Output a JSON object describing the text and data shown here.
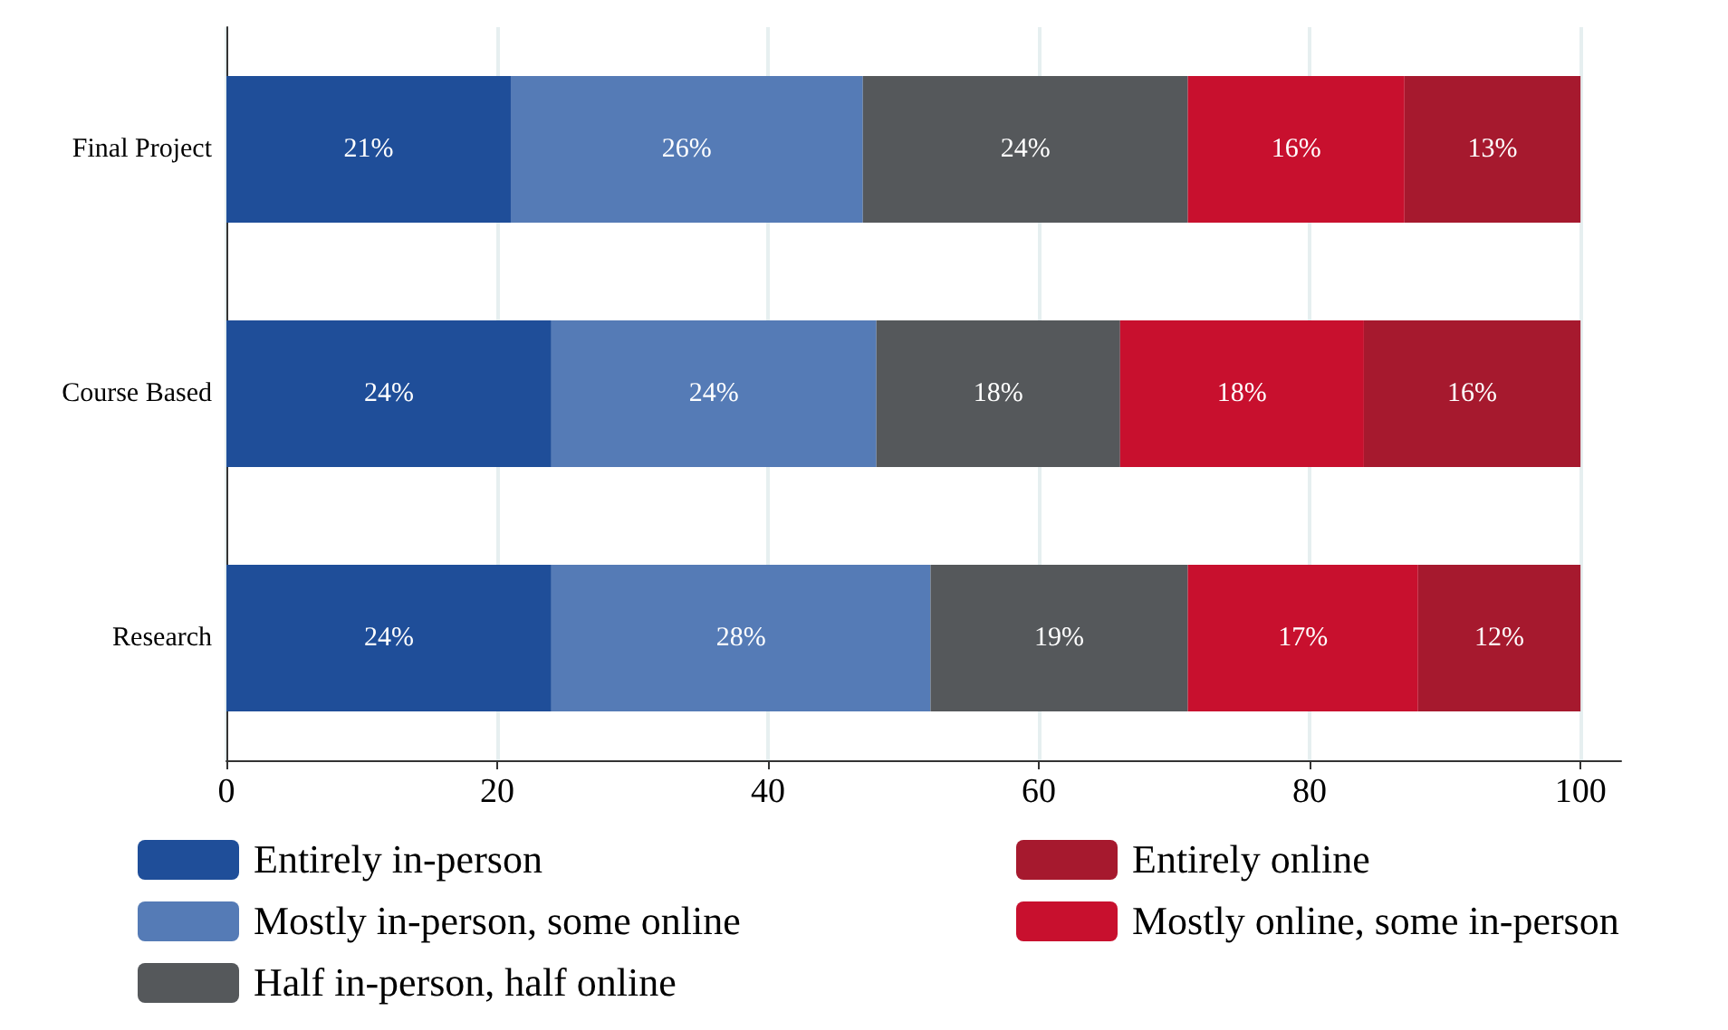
{
  "chart_data": {
    "type": "bar",
    "orientation": "horizontal",
    "stacked": true,
    "categories": [
      "Final Project",
      "Course Based",
      "Research"
    ],
    "series": [
      {
        "name": "Entirely in-person",
        "color": "#1f4e99",
        "values": [
          21,
          24,
          24
        ],
        "value_labels": [
          "21%",
          "24%",
          "24%"
        ]
      },
      {
        "name": "Mostly in-person, some online",
        "color": "#557bb6",
        "values": [
          26,
          24,
          28
        ],
        "value_labels": [
          "26%",
          "24%",
          "28%"
        ]
      },
      {
        "name": "Half in-person, half online",
        "color": "#55585b",
        "values": [
          24,
          18,
          19
        ],
        "value_labels": [
          "24%",
          "18%",
          "19%"
        ]
      },
      {
        "name": "Mostly online, some in-person",
        "color": "#c8102e",
        "values": [
          16,
          18,
          17
        ],
        "value_labels": [
          "16%",
          "18%",
          "17%"
        ]
      },
      {
        "name": "Entirely online",
        "color": "#a6192e",
        "values": [
          13,
          16,
          12
        ],
        "value_labels": [
          "13%",
          "16%",
          "12%"
        ]
      }
    ],
    "xlim": [
      0,
      103
    ],
    "xticks": [
      0,
      20,
      40,
      60,
      80,
      100
    ],
    "grid": "x",
    "legend": "bottom"
  }
}
